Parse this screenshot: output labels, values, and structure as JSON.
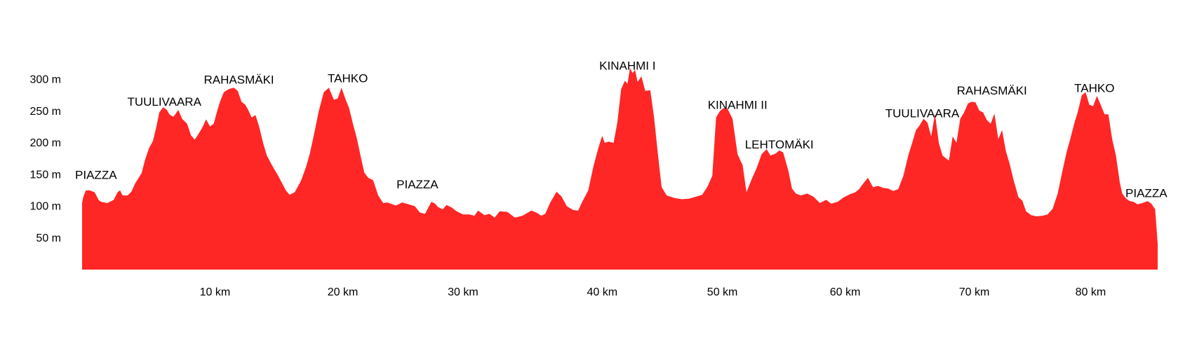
{
  "chart_data": {
    "type": "area",
    "title": "",
    "xlabel": "",
    "ylabel": "",
    "xlim": [
      0,
      85
    ],
    "ylim": [
      0,
      320
    ],
    "fill_color": "#ff2626",
    "grid": false,
    "legend": "none",
    "y_ticks": [
      {
        "value": 50,
        "label": "50 m"
      },
      {
        "value": 100,
        "label": "100 m"
      },
      {
        "value": 150,
        "label": "150 m"
      },
      {
        "value": 200,
        "label": "200 m"
      },
      {
        "value": 250,
        "label": "250 m"
      },
      {
        "value": 300,
        "label": "300 m"
      }
    ],
    "x_ticks": [
      {
        "value": 10.5,
        "label": "10 km"
      },
      {
        "value": 20.6,
        "label": "20 km"
      },
      {
        "value": 30.1,
        "label": "30 km"
      },
      {
        "value": 41.1,
        "label": "40 km"
      },
      {
        "value": 50.6,
        "label": "50 km"
      },
      {
        "value": 60.3,
        "label": "60 km"
      },
      {
        "value": 70.5,
        "label": "70 km"
      },
      {
        "value": 79.7,
        "label": "80 km"
      }
    ],
    "annotations": [
      {
        "text": "PIAZZA",
        "x": 1.1,
        "y": 150
      },
      {
        "text": "TUULIVAARA",
        "x": 6.5,
        "y": 265
      },
      {
        "text": "RAHASMÄKI",
        "x": 12.4,
        "y": 300
      },
      {
        "text": "TAHKO",
        "x": 21.0,
        "y": 302
      },
      {
        "text": "PIAZZA",
        "x": 26.5,
        "y": 135
      },
      {
        "text": "KINAHMI I",
        "x": 43.1,
        "y": 322
      },
      {
        "text": "KINAHMI II",
        "x": 51.8,
        "y": 260
      },
      {
        "text": "LEHTOMÄKI",
        "x": 55.1,
        "y": 198
      },
      {
        "text": "TUULIVAARA",
        "x": 66.4,
        "y": 247
      },
      {
        "text": "RAHASMÄKI",
        "x": 71.9,
        "y": 283
      },
      {
        "text": "TAHKO",
        "x": 80.0,
        "y": 287
      },
      {
        "text": "PIAZZA",
        "x": 84.1,
        "y": 121
      }
    ],
    "series": [
      {
        "x": [
          0,
          0.1,
          0.3,
          0.6,
          1.0,
          1.3,
          1.5,
          2.0,
          2.5,
          2.8,
          3.0,
          3.2,
          3.6,
          3.9,
          4.2,
          4.7,
          5.0,
          5.3,
          5.6,
          5.9,
          6.1,
          6.4,
          6.7,
          6.9,
          7.2,
          7.4,
          7.6,
          7.9,
          8.3,
          8.6,
          8.9,
          9.2,
          9.5,
          9.8,
          10.1,
          10.4,
          10.7,
          10.9,
          11.2,
          11.6,
          12.0,
          12.3,
          12.6,
          12.9,
          13.1,
          13.4,
          13.7,
          14.0,
          14.3,
          14.6,
          15.0,
          15.5,
          16.1,
          16.4,
          16.8,
          17.3,
          17.7,
          18.0,
          18.4,
          18.7,
          19.1,
          19.5,
          19.9,
          20.2,
          20.5,
          20.8,
          21.1,
          21.4,
          21.7,
          22.0,
          22.3,
          22.6,
          23.0,
          23.4,
          23.8,
          24.1,
          24.4,
          24.8,
          25.3,
          25.8,
          26.3,
          26.7,
          27.1,
          27.6,
          27.9,
          28.1,
          28.5,
          28.8,
          29.2,
          29.6,
          30.1,
          30.6,
          31.0,
          31.3,
          31.8,
          32.2,
          32.6,
          33.0,
          33.6,
          34.2,
          34.8,
          35.5,
          35.9,
          36.3,
          36.6,
          37.0,
          37.5,
          37.9,
          38.3,
          38.8,
          39.2,
          39.5,
          40.0,
          40.4,
          40.8,
          41.1,
          41.3,
          41.6,
          42.0,
          42.3,
          42.6,
          42.9,
          43.1,
          43.3,
          43.5,
          43.7,
          43.9,
          44.2,
          44.5,
          44.9,
          45.2,
          45.5,
          45.8,
          46.2,
          46.8,
          47.4,
          48.0,
          48.5,
          49.0,
          49.4,
          49.8,
          50.1,
          50.4,
          50.7,
          51.0,
          51.4,
          51.8,
          52.2,
          52.5,
          52.9,
          53.3,
          53.7,
          54.1,
          54.4,
          54.8,
          55.1,
          55.4,
          55.8,
          56.1,
          56.4,
          56.8,
          57.3,
          57.8,
          58.3,
          58.8,
          59.2,
          59.7,
          60.2,
          60.7,
          61.1,
          61.4,
          61.7,
          62.1,
          62.5,
          62.9,
          63.3,
          63.7,
          64.1,
          64.5,
          64.9,
          65.3,
          65.6,
          65.9,
          66.2,
          66.5,
          66.8,
          67.1,
          67.4,
          67.7,
          68.0,
          68.3,
          68.5,
          68.8,
          69.1,
          69.4,
          69.7,
          70.0,
          70.3,
          70.6,
          70.9,
          71.2,
          71.5,
          71.8,
          72.1,
          72.4,
          72.7,
          73.0,
          73.3,
          73.6,
          74.0,
          74.3,
          74.6,
          75.0,
          75.4,
          75.9,
          76.3,
          76.7,
          77.1,
          77.5,
          77.8,
          78.1,
          78.4,
          78.7,
          79.0,
          79.3,
          79.6,
          79.9,
          80.2,
          80.5,
          80.8,
          81.1,
          81.4,
          81.7,
          82.0,
          82.2,
          82.5,
          82.8,
          83.1,
          83.4,
          83.8,
          84.2,
          84.5,
          84.8,
          85.0
        ],
        "y": [
          105,
          115,
          125,
          125,
          122,
          110,
          107,
          105,
          110,
          122,
          125,
          117,
          117,
          123,
          136,
          152,
          175,
          192,
          203,
          228,
          248,
          256,
          252,
          245,
          241,
          246,
          252,
          238,
          230,
          212,
          205,
          214,
          224,
          237,
          226,
          230,
          252,
          265,
          280,
          285,
          287,
          282,
          265,
          260,
          253,
          240,
          244,
          225,
          200,
          180,
          165,
          148,
          125,
          118,
          122,
          140,
          162,
          183,
          220,
          250,
          280,
          287,
          268,
          270,
          287,
          270,
          255,
          230,
          208,
          180,
          153,
          145,
          141,
          117,
          105,
          106,
          104,
          101,
          106,
          103,
          100,
          90,
          88,
          107,
          104,
          99,
          95,
          102,
          98,
          92,
          87,
          87,
          85,
          93,
          86,
          88,
          82,
          92,
          91,
          82,
          85,
          93,
          90,
          85,
          88,
          106,
          123,
          115,
          100,
          94,
          93,
          106,
          125,
          162,
          192,
          211,
          200,
          202,
          200,
          232,
          285,
          298,
          293,
          318,
          310,
          315,
          296,
          305,
          282,
          283,
          240,
          183,
          130,
          117,
          113,
          111,
          112,
          115,
          118,
          130,
          148,
          240,
          250,
          255,
          254,
          238,
          182,
          165,
          122,
          142,
          160,
          182,
          190,
          180,
          183,
          188,
          185,
          157,
          128,
          120,
          117,
          120,
          115,
          105,
          110,
          104,
          107,
          114,
          119,
          122,
          127,
          135,
          145,
          130,
          132,
          129,
          128,
          124,
          127,
          148,
          181,
          200,
          220,
          228,
          238,
          232,
          210,
          246,
          200,
          180,
          175,
          172,
          210,
          200,
          238,
          248,
          262,
          265,
          264,
          251,
          248,
          236,
          230,
          246,
          206,
          220,
          187,
          167,
          142,
          114,
          109,
          92,
          86,
          84,
          85,
          87,
          96,
          120,
          158,
          185,
          207,
          230,
          250,
          275,
          280,
          260,
          258,
          274,
          260,
          245,
          245,
          206,
          180,
          138,
          120,
          112,
          108,
          107,
          103,
          105,
          108,
          104,
          95,
          40
        ]
      }
    ]
  }
}
